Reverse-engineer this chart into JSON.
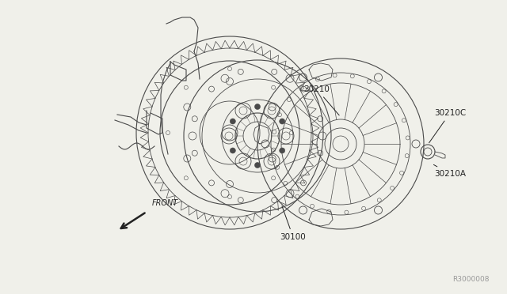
{
  "bg_color": "#f0f0ea",
  "line_color": "#4a4a4a",
  "line_color2": "#666666",
  "label_color": "#222222",
  "ref_color": "#999999",
  "diagram_ref": "R3000008",
  "fig_width": 6.4,
  "fig_height": 3.72,
  "dpi": 100,
  "label_fontsize": 7.5,
  "ref_fontsize": 6.5,
  "front_fontsize": 7.0,
  "label_30210": "30210",
  "label_30210C": "30210C",
  "label_30210A": "30210A",
  "label_30100": "30100",
  "label_front": "FRONT"
}
